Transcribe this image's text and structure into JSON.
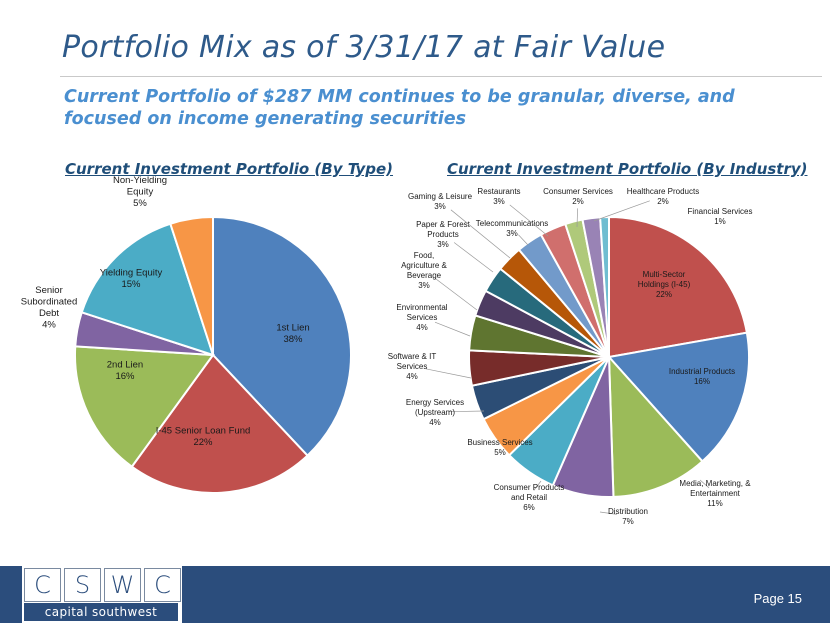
{
  "slide": {
    "title": "Portfolio Mix as of 3/31/17 at Fair Value",
    "subtitle": "Current Portfolio of $287 MM continues to be granular, diverse, and focused on income generating securities",
    "page": "Page 15"
  },
  "logo": {
    "letters": [
      "C",
      "S",
      "W",
      "C"
    ],
    "name": "capital southwest"
  },
  "chart_data": [
    {
      "type": "pie",
      "title": "Current Investment Portfolio (By Type)",
      "start_angle_deg": 0,
      "slices": [
        {
          "label": [
            "1st Lien"
          ],
          "value": 38,
          "pct": "38%",
          "color": "#4f81bd"
        },
        {
          "label": [
            "I-45 Senior Loan Fund"
          ],
          "value": 22,
          "pct": "22%",
          "color": "#c0504d"
        },
        {
          "label": [
            "2nd Lien"
          ],
          "value": 16,
          "pct": "16%",
          "color": "#9bbb59"
        },
        {
          "label": [
            "Senior",
            "Subordinated",
            "Debt"
          ],
          "value": 4,
          "pct": "4%",
          "color": "#8064a2"
        },
        {
          "label": [
            "Yielding Equity"
          ],
          "value": 15,
          "pct": "15%",
          "color": "#4bacc6"
        },
        {
          "label": [
            "Non-Yielding",
            "Equity"
          ],
          "value": 5,
          "pct": "5%",
          "color": "#f79646"
        }
      ]
    },
    {
      "type": "pie",
      "title": "Current Investment Portfolio (By Industry)",
      "start_angle_deg": 0,
      "slices": [
        {
          "label": [
            "Multi-Sector",
            "Holdings (I-45)"
          ],
          "value": 22,
          "pct": "22%",
          "color": "#c0504d"
        },
        {
          "label": [
            "Industrial Products"
          ],
          "value": 16,
          "pct": "16%",
          "color": "#4f81bd"
        },
        {
          "label": [
            "Media, Marketing, &",
            "Entertainment"
          ],
          "value": 11,
          "pct": "11%",
          "color": "#9bbb59"
        },
        {
          "label": [
            "Distribution"
          ],
          "value": 7,
          "pct": "7%",
          "color": "#8064a2"
        },
        {
          "label": [
            "Consumer Products",
            "and Retail"
          ],
          "value": 6,
          "pct": "6%",
          "color": "#4bacc6"
        },
        {
          "label": [
            "Business Services"
          ],
          "value": 5,
          "pct": "5%",
          "color": "#f79646"
        },
        {
          "label": [
            "Energy Services",
            "(Upstream)"
          ],
          "value": 4,
          "pct": "4%",
          "color": "#2c4d75"
        },
        {
          "label": [
            "Software & IT",
            "Services"
          ],
          "value": 4,
          "pct": "4%",
          "color": "#772c2a"
        },
        {
          "label": [
            "Environmental",
            "Services"
          ],
          "value": 4,
          "pct": "4%",
          "color": "#5f7530"
        },
        {
          "label": [
            "Food,",
            "Agriculture &",
            "Beverage"
          ],
          "value": 3,
          "pct": "3%",
          "color": "#4d3b62"
        },
        {
          "label": [
            "Paper & Forest",
            "Products"
          ],
          "value": 3,
          "pct": "3%",
          "color": "#276a7c"
        },
        {
          "label": [
            "Gaming & Leisure"
          ],
          "value": 3,
          "pct": "3%",
          "color": "#b65708"
        },
        {
          "label": [
            "Telecommunications"
          ],
          "value": 3,
          "pct": "3%",
          "color": "#729aca"
        },
        {
          "label": [
            "Restaurants"
          ],
          "value": 3,
          "pct": "3%",
          "color": "#d06f6d"
        },
        {
          "label": [
            "Consumer Services"
          ],
          "value": 2,
          "pct": "2%",
          "color": "#afc97a"
        },
        {
          "label": [
            "Healthcare Products"
          ],
          "value": 2,
          "pct": "2%",
          "color": "#9983b5"
        },
        {
          "label": [
            "Financial Services"
          ],
          "value": 1,
          "pct": "1%",
          "color": "#6fbdd1"
        }
      ]
    }
  ]
}
